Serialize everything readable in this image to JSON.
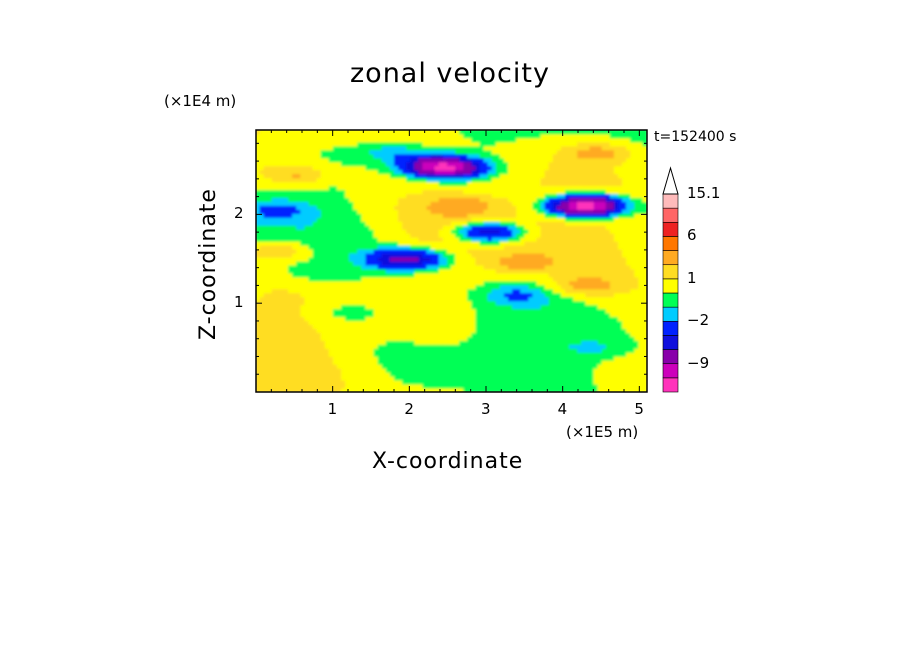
{
  "chart_data": {
    "type": "heatmap",
    "title": "zonal velocity",
    "xlabel": "X-coordinate",
    "ylabel": "Z-coordinate",
    "x_unit": "(×1E5 m)",
    "y_unit": "(×1E4 m)",
    "time_label": "t=152400 s",
    "xlim": [
      0,
      5.1
    ],
    "ylim": [
      0,
      2.95
    ],
    "x_ticks": [
      "1",
      "2",
      "3",
      "4",
      "5"
    ],
    "y_ticks": [
      "1",
      "2"
    ],
    "colorbar": {
      "labels": [
        "15.1",
        "6",
        "1",
        "−2",
        "−9"
      ],
      "levels": [
        -16,
        -12,
        -9,
        -6,
        -4,
        -2,
        -1,
        0,
        1,
        2,
        4,
        6,
        9,
        12,
        15.1
      ],
      "colors": [
        "#ff33bb",
        "#cc00bb",
        "#8800aa",
        "#1010dd",
        "#0022ff",
        "#00ccff",
        "#00ff55",
        "#ffff00",
        "#ffdd22",
        "#ffaa22",
        "#ff7700",
        "#ee2222",
        "#ff6666",
        "#ffbbbb"
      ],
      "extend_max": true
    },
    "features": [
      {
        "x": 2.6,
        "z": 2.52,
        "v": -6
      },
      {
        "x": 2.35,
        "z": 2.55,
        "v": -9
      },
      {
        "x": 4.4,
        "z": 2.1,
        "v": -6
      },
      {
        "x": 4.25,
        "z": 2.1,
        "v": -9
      },
      {
        "x": 3.05,
        "z": 1.8,
        "v": -6
      },
      {
        "x": 1.9,
        "z": 1.5,
        "v": -6
      },
      {
        "x": 2.2,
        "z": 1.5,
        "v": -2
      },
      {
        "x": 3.4,
        "z": 1.1,
        "v": -2
      },
      {
        "x": 0.3,
        "z": 2.05,
        "v": -2
      },
      {
        "x": 1.8,
        "z": 2.7,
        "v": -2
      },
      {
        "x": 0.55,
        "z": 2.45,
        "v": 2
      },
      {
        "x": 2.7,
        "z": 2.1,
        "v": 2
      },
      {
        "x": 0.3,
        "z": 1.6,
        "v": 2
      },
      {
        "x": 4.3,
        "z": 1.2,
        "v": 2
      },
      {
        "x": 4.5,
        "z": 2.7,
        "v": 2
      },
      {
        "x": 3.5,
        "z": 1.45,
        "v": 2
      },
      {
        "x": 1.2,
        "z": 0.9,
        "v": -1
      },
      {
        "x": 4.5,
        "z": 0.5,
        "v": -1
      },
      {
        "x": 0.8,
        "z": 1.35,
        "v": -1
      }
    ]
  }
}
